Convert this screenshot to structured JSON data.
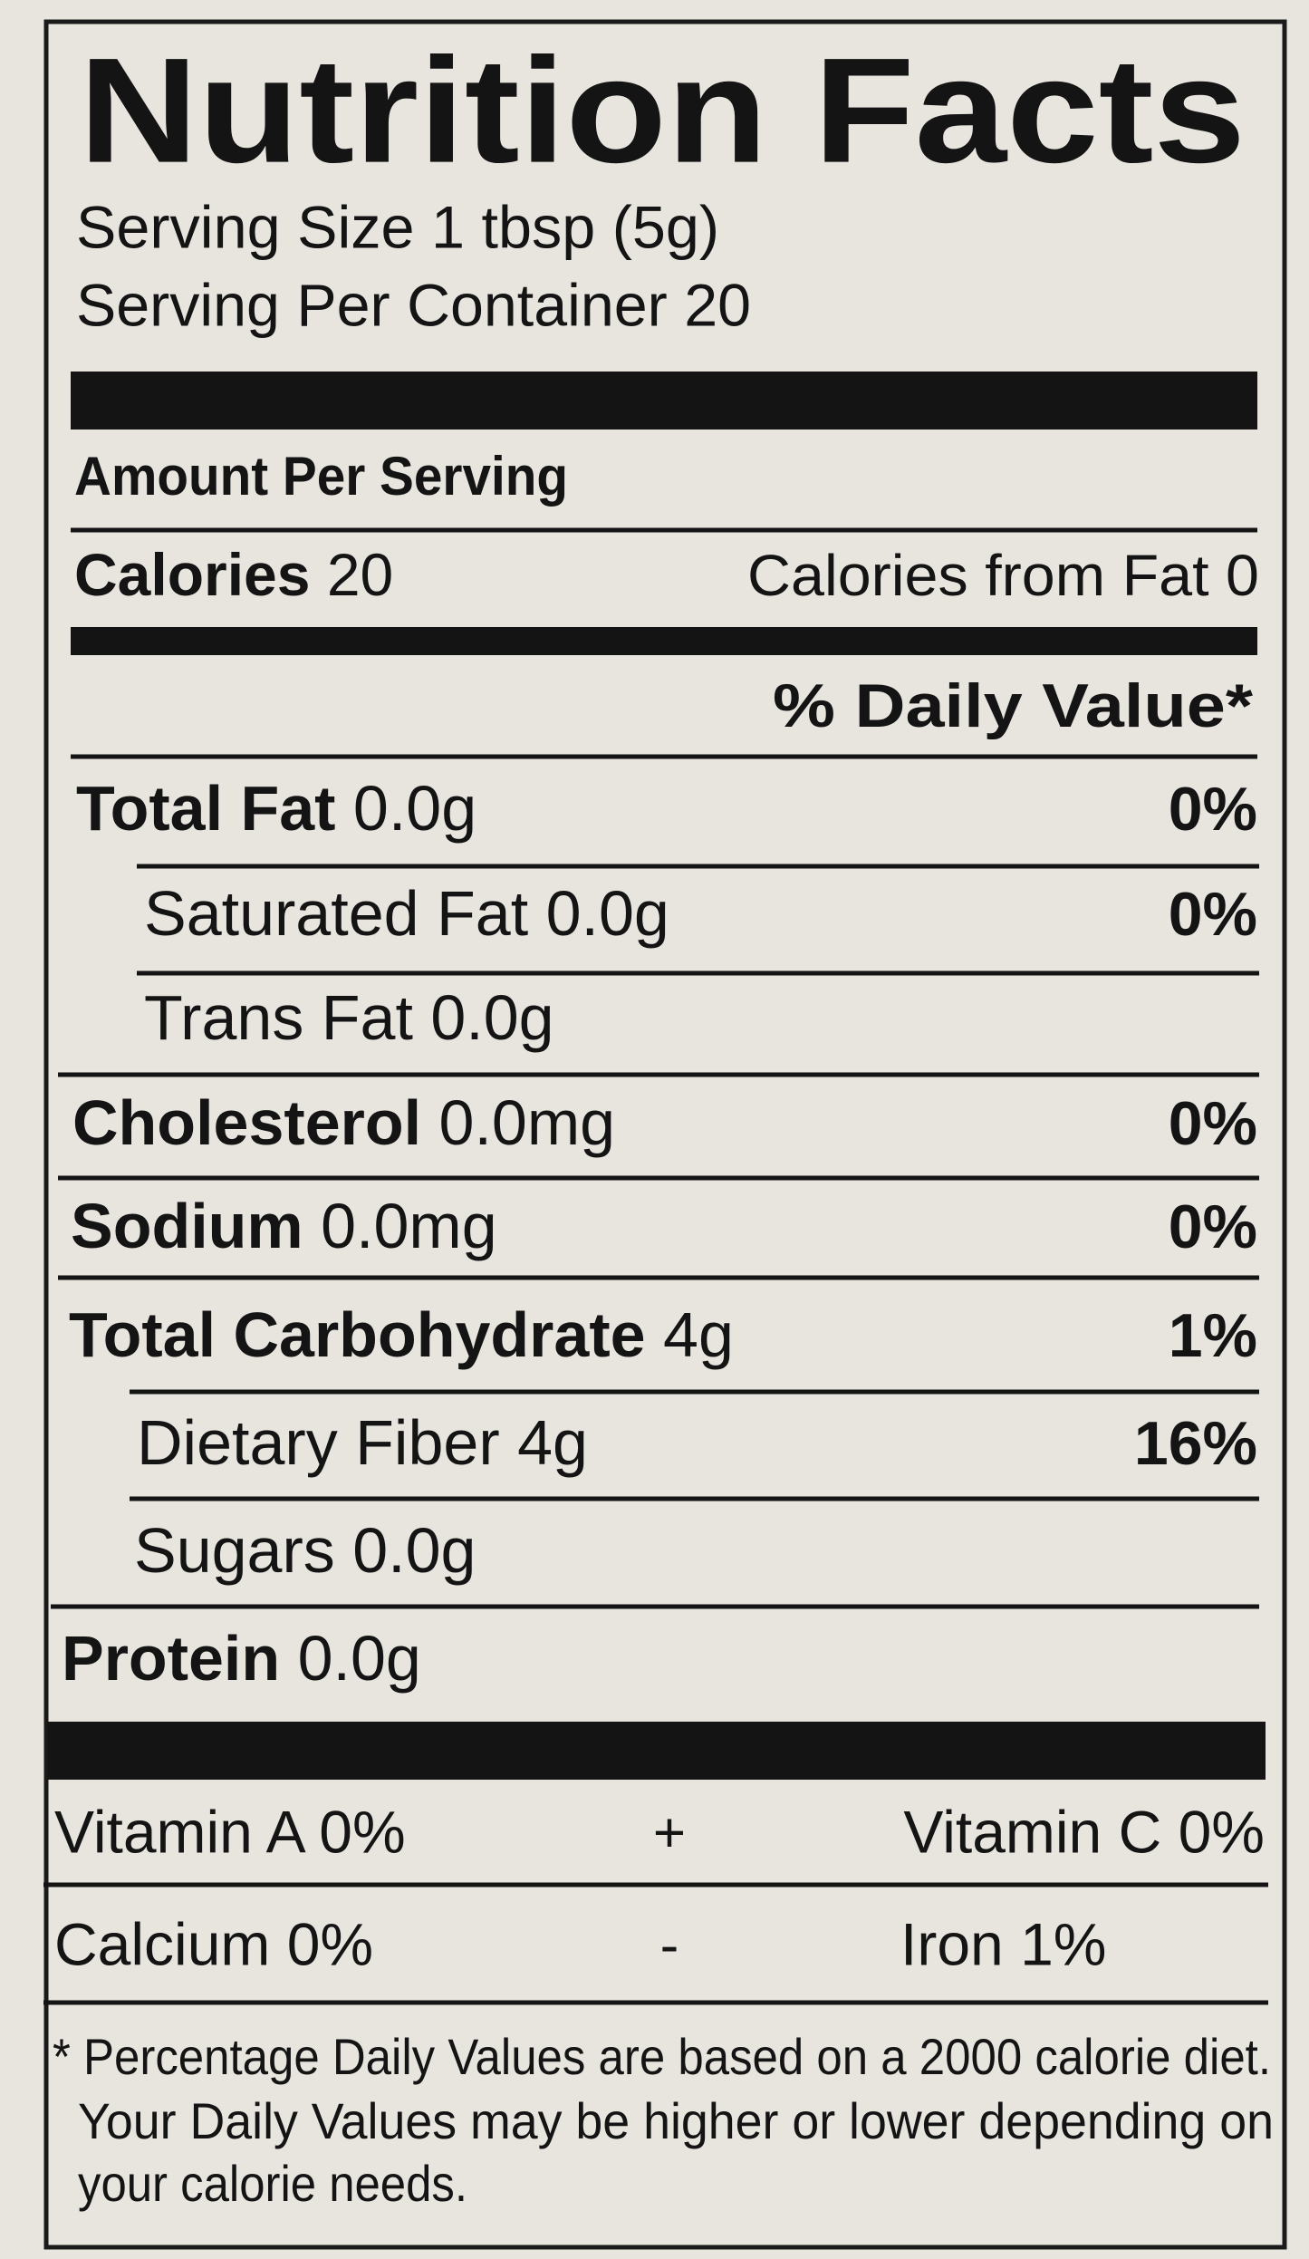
{
  "title": "Nutrition Facts",
  "serving_size": "Serving Size 1 tbsp (5g)",
  "servings_per_container": "Serving Per Container 20",
  "amount_per_serving": "Amount Per Serving",
  "calories": {
    "label": "Calories",
    "amount": "20"
  },
  "calories_from_fat": "Calories from Fat 0",
  "daily_value_header": "% Daily Value*",
  "nutrients": [
    {
      "label": "Total Fat",
      "amount": "0.0g",
      "dv": "0%"
    },
    {
      "label": "Saturated Fat",
      "amount": "0.0g",
      "dv": "0%"
    },
    {
      "label": "Trans Fat",
      "amount": "0.0g"
    },
    {
      "label": "Cholesterol",
      "amount": "0.0mg",
      "dv": "0%"
    },
    {
      "label": "Sodium",
      "amount": "0.0mg",
      "dv": "0%"
    },
    {
      "label": "Total Carbohydrate",
      "amount": "4g",
      "dv": "1%"
    },
    {
      "label": "Dietary Fiber",
      "amount": "4g",
      "dv": "16%"
    },
    {
      "label": "Sugars",
      "amount": "0.0g"
    },
    {
      "label": "Protein",
      "amount": "0.0g"
    }
  ],
  "vitamins": [
    {
      "left": "Vitamin A 0%",
      "separator": "+",
      "right": "Vitamin C 0%"
    },
    {
      "left": "Calcium 0%",
      "separator": "-",
      "right": "Iron 1%"
    }
  ],
  "footnote": [
    "* Percentage Daily Values are based on a 2000 calorie diet.",
    "Your Daily Values may be higher or lower depending on",
    "your calorie needs."
  ]
}
